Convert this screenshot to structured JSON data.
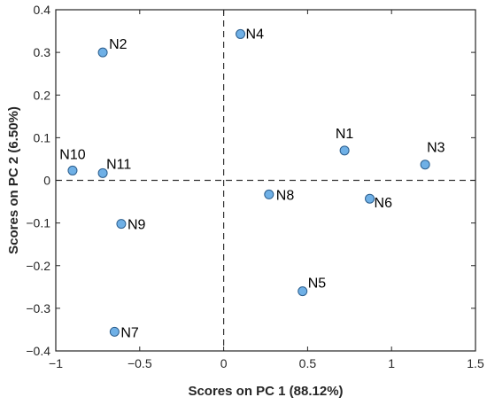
{
  "chart_data": {
    "type": "scatter",
    "xlabel": "Scores on PC 1 (88.12%)",
    "ylabel": "Scores on PC 2 (6.50%)",
    "xlim": [
      -1,
      1.5
    ],
    "ylim": [
      -0.4,
      0.4
    ],
    "xticks": [
      -1,
      -0.5,
      0,
      0.5,
      1,
      1.5
    ],
    "yticks": [
      -0.4,
      -0.3,
      -0.2,
      -0.1,
      0,
      0.1,
      0.2,
      0.3,
      0.4
    ],
    "xtick_labels": [
      "−1",
      "−0.5",
      "0",
      "0.5",
      "1",
      "1.5"
    ],
    "ytick_labels": [
      "−0.4",
      "−0.3",
      "−0.2",
      "−0.1",
      "0",
      "0.1",
      "0.2",
      "0.3",
      "0.4"
    ],
    "grid": false,
    "reference_lines": {
      "x": 0,
      "y": 0,
      "style": "dashed"
    },
    "marker_color": "#6fb0e6",
    "marker_edge_color": "#2b5d8c",
    "points": [
      {
        "label": "N1",
        "x": 0.72,
        "y": 0.07
      },
      {
        "label": "N2",
        "x": -0.72,
        "y": 0.3
      },
      {
        "label": "N3",
        "x": 1.2,
        "y": 0.037
      },
      {
        "label": "N4",
        "x": 0.1,
        "y": 0.343
      },
      {
        "label": "N5",
        "x": 0.47,
        "y": -0.26
      },
      {
        "label": "N6",
        "x": 0.87,
        "y": -0.043
      },
      {
        "label": "N7",
        "x": -0.65,
        "y": -0.355
      },
      {
        "label": "N8",
        "x": 0.27,
        "y": -0.033
      },
      {
        "label": "N9",
        "x": -0.61,
        "y": -0.102
      },
      {
        "label": "N10",
        "x": -0.9,
        "y": 0.023
      },
      {
        "label": "N11",
        "x": -0.72,
        "y": 0.017
      }
    ]
  }
}
